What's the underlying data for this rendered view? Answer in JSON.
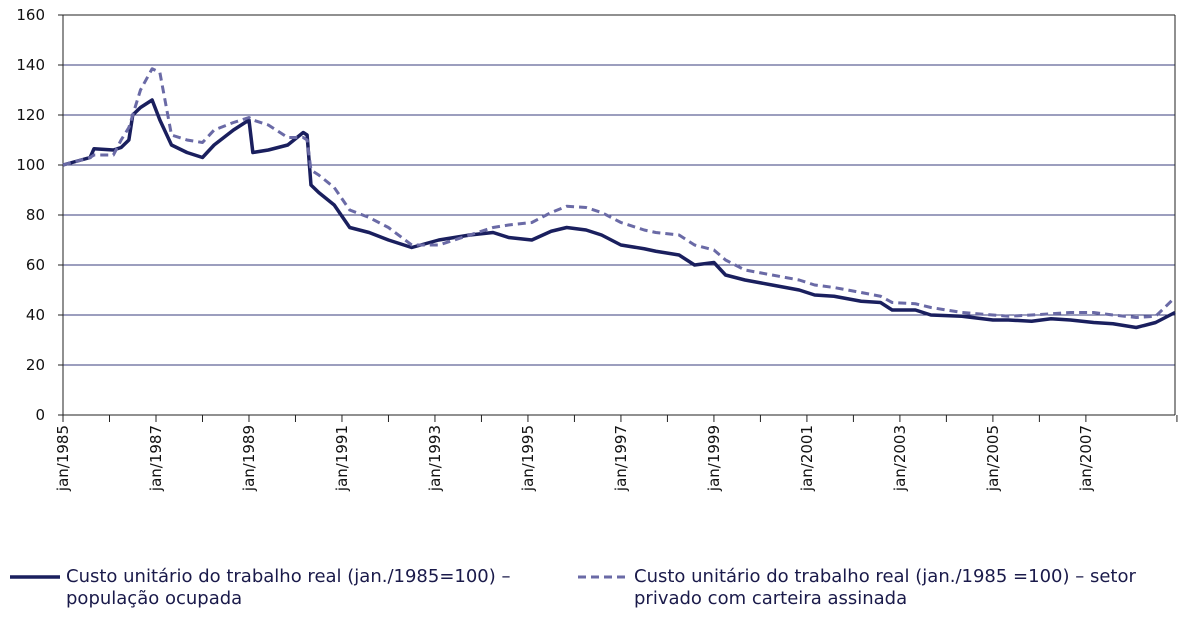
{
  "chart_data": {
    "type": "line",
    "x": [
      "jan/1985",
      "ago/1985",
      "set/1985",
      "fev/1986",
      "abr/1986",
      "jun/1986",
      "jul/1986",
      "set/1986",
      "dez/1986",
      "fev/1987",
      "mai/1987",
      "set/1987",
      "jan/1988",
      "abr/1988",
      "set/1988",
      "jan/1989",
      "fev/1989",
      "jun/1989",
      "nov/1989",
      "mar/1990",
      "abr/1990",
      "mai/1990",
      "jul/1990",
      "nov/1990",
      "mar/1991",
      "ago/1991",
      "jan/1992",
      "jul/1992",
      "fev/1993",
      "out/1993",
      "abr/1994",
      "ago/1994",
      "fev/1995",
      "jul/1995",
      "nov/1995",
      "abr/1996",
      "ago/1996",
      "jan/1997",
      "jul/1997",
      "out/1997",
      "abr/1998",
      "ago/1998",
      "jan/1999",
      "abr/1999",
      "set/1999",
      "abr/2000",
      "nov/2000",
      "mar/2001",
      "ago/2001",
      "mar/2002",
      "ago/2002",
      "nov/2002",
      "mai/2003",
      "set/2003",
      "mai/2004",
      "jan/2005",
      "mai/2005",
      "nov/2005",
      "abr/2006",
      "set/2006",
      "mar/2007",
      "ago/2007",
      "fev/2008",
      "jul/2008",
      "dez/2008"
    ],
    "series": [
      {
        "name": "Custo unitário do trabalho real (jan./1985=100) – população ocupada",
        "color": "#1a1f5e",
        "dash": false,
        "values": [
          100,
          103,
          106.5,
          106,
          107,
          110,
          120,
          123,
          126,
          118,
          108,
          105,
          103,
          108,
          114,
          118,
          105,
          106,
          108,
          113,
          112,
          92,
          89,
          84,
          75,
          73,
          70,
          67,
          70,
          72,
          73,
          71,
          70,
          73.5,
          75,
          74,
          72,
          68,
          66.5,
          65.5,
          64,
          60,
          61,
          56,
          54,
          52,
          50,
          48,
          47.5,
          45.5,
          45,
          42,
          42,
          40,
          39.5,
          38,
          38,
          37.5,
          38.5,
          38,
          37,
          36.5,
          35,
          37,
          41
        ]
      },
      {
        "name": "Custo unitário do trabalho real (jan./1985 =100) – setor privado com carteira assinada",
        "color": "#6a6aa6",
        "dash": true,
        "values": [
          100,
          103,
          104,
          104,
          110,
          115,
          120,
          130,
          138.5,
          137,
          112,
          110,
          109,
          114,
          117,
          119,
          118,
          116,
          111,
          111,
          110,
          98,
          96,
          91,
          82,
          79,
          75,
          68,
          68,
          72,
          75,
          76,
          77,
          81,
          83.5,
          83,
          81,
          77,
          74,
          73,
          72,
          68,
          66,
          62,
          58,
          56,
          54,
          52,
          51,
          49,
          47.5,
          45,
          44.5,
          43,
          41,
          40,
          39.5,
          40,
          40.5,
          41,
          41,
          40,
          39,
          39.5,
          47
        ]
      }
    ],
    "xticks": [
      "jan/1985",
      "jan/1987",
      "jan/1989",
      "jan/1991",
      "jan/1993",
      "jan/1995",
      "jan/1997",
      "jan/1999",
      "jan/2001",
      "jan/2003",
      "jan/2005",
      "jan/2007"
    ],
    "ylim": [
      0,
      160
    ],
    "yticks": [
      0,
      20,
      40,
      60,
      80,
      100,
      120,
      140,
      160
    ],
    "grid": true
  }
}
